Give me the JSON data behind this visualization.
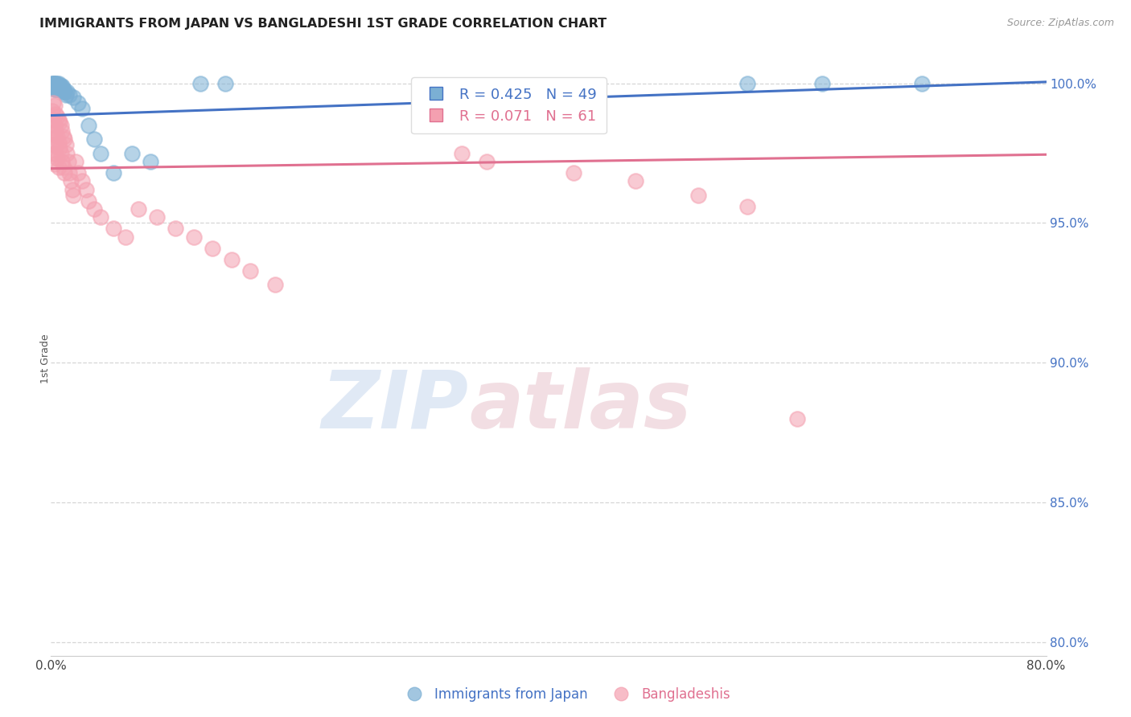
{
  "title": "IMMIGRANTS FROM JAPAN VS BANGLADESHI 1ST GRADE CORRELATION CHART",
  "source": "Source: ZipAtlas.com",
  "ylabel": "1st Grade",
  "xlim": [
    0.0,
    0.8
  ],
  "ylim": [
    0.795,
    1.008
  ],
  "xticks": [
    0.0,
    0.1,
    0.2,
    0.3,
    0.4,
    0.5,
    0.6,
    0.7,
    0.8
  ],
  "xticklabels": [
    "0.0%",
    "",
    "",
    "",
    "",
    "",
    "",
    "",
    "80.0%"
  ],
  "yticks": [
    0.8,
    0.85,
    0.9,
    0.95,
    1.0
  ],
  "yticklabels": [
    "80.0%",
    "85.0%",
    "90.0%",
    "95.0%",
    "100.0%"
  ],
  "blue_color": "#7BAFD4",
  "pink_color": "#F4A0B0",
  "blue_line_color": "#4472C4",
  "pink_line_color": "#E07090",
  "legend_blue_R": "R = 0.425",
  "legend_blue_N": "N = 49",
  "legend_pink_R": "R = 0.071",
  "legend_pink_N": "N = 61",
  "watermark_zip": "ZIP",
  "watermark_atlas": "atlas",
  "blue_scatter_x": [
    0.001,
    0.001,
    0.001,
    0.002,
    0.002,
    0.002,
    0.002,
    0.003,
    0.003,
    0.003,
    0.003,
    0.003,
    0.004,
    0.004,
    0.004,
    0.004,
    0.005,
    0.005,
    0.005,
    0.005,
    0.005,
    0.006,
    0.006,
    0.006,
    0.007,
    0.007,
    0.008,
    0.008,
    0.009,
    0.01,
    0.01,
    0.011,
    0.012,
    0.013,
    0.015,
    0.018,
    0.022,
    0.025,
    0.03,
    0.035,
    0.04,
    0.05,
    0.065,
    0.08,
    0.12,
    0.14,
    0.56,
    0.62,
    0.7
  ],
  "blue_scatter_y": [
    0.999,
    1.0,
    0.999,
    1.0,
    0.999,
    1.0,
    0.999,
    1.0,
    0.999,
    1.0,
    0.999,
    0.998,
    1.0,
    0.999,
    0.999,
    0.998,
    1.0,
    0.999,
    0.999,
    0.998,
    0.998,
    1.0,
    0.999,
    0.998,
    0.999,
    0.998,
    0.999,
    0.998,
    0.999,
    0.998,
    0.997,
    0.997,
    0.996,
    0.997,
    0.996,
    0.995,
    0.993,
    0.991,
    0.985,
    0.98,
    0.975,
    0.968,
    0.975,
    0.972,
    1.0,
    1.0,
    1.0,
    1.0,
    1.0
  ],
  "pink_scatter_x": [
    0.001,
    0.001,
    0.001,
    0.002,
    0.002,
    0.002,
    0.002,
    0.003,
    0.003,
    0.003,
    0.003,
    0.004,
    0.004,
    0.004,
    0.005,
    0.005,
    0.005,
    0.006,
    0.006,
    0.006,
    0.007,
    0.007,
    0.008,
    0.008,
    0.009,
    0.009,
    0.01,
    0.01,
    0.011,
    0.011,
    0.012,
    0.013,
    0.014,
    0.015,
    0.016,
    0.017,
    0.018,
    0.02,
    0.022,
    0.025,
    0.028,
    0.03,
    0.035,
    0.04,
    0.05,
    0.06,
    0.07,
    0.085,
    0.1,
    0.115,
    0.13,
    0.145,
    0.16,
    0.18,
    0.33,
    0.35,
    0.42,
    0.47,
    0.52,
    0.56,
    0.6
  ],
  "pink_scatter_y": [
    0.99,
    0.984,
    0.978,
    0.993,
    0.987,
    0.982,
    0.975,
    0.992,
    0.985,
    0.978,
    0.971,
    0.989,
    0.983,
    0.975,
    0.988,
    0.981,
    0.973,
    0.987,
    0.979,
    0.97,
    0.986,
    0.977,
    0.985,
    0.975,
    0.983,
    0.972,
    0.981,
    0.97,
    0.98,
    0.968,
    0.978,
    0.975,
    0.972,
    0.968,
    0.965,
    0.962,
    0.96,
    0.972,
    0.968,
    0.965,
    0.962,
    0.958,
    0.955,
    0.952,
    0.948,
    0.945,
    0.955,
    0.952,
    0.948,
    0.945,
    0.941,
    0.937,
    0.933,
    0.928,
    0.975,
    0.972,
    0.968,
    0.965,
    0.96,
    0.956,
    0.88
  ]
}
